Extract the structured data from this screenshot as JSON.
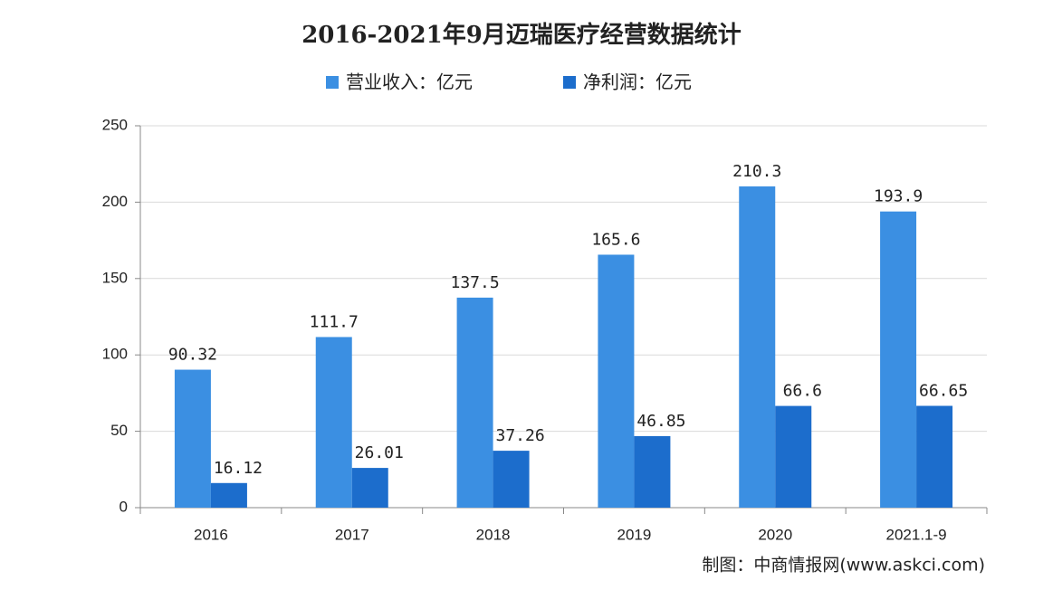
{
  "chart_data": {
    "type": "bar",
    "title": "2016-2021年9月迈瑞医疗经营数据统计",
    "categories": [
      "2016",
      "2017",
      "2018",
      "2019",
      "2020",
      "2021.1-9"
    ],
    "series": [
      {
        "name": "营业收入：亿元",
        "color": "#3b8fe2",
        "values": [
          90.32,
          111.7,
          137.5,
          165.6,
          210.3,
          193.9
        ]
      },
      {
        "name": "净利润：亿元",
        "color": "#1c6dcc",
        "values": [
          16.12,
          26.01,
          37.26,
          46.85,
          66.6,
          66.65
        ]
      }
    ],
    "ylim": [
      0,
      250
    ],
    "yticks": [
      0,
      50,
      100,
      150,
      200,
      250
    ],
    "grid": true,
    "legend": "top",
    "source": "制图：中商情报网(www.askci.com)"
  }
}
